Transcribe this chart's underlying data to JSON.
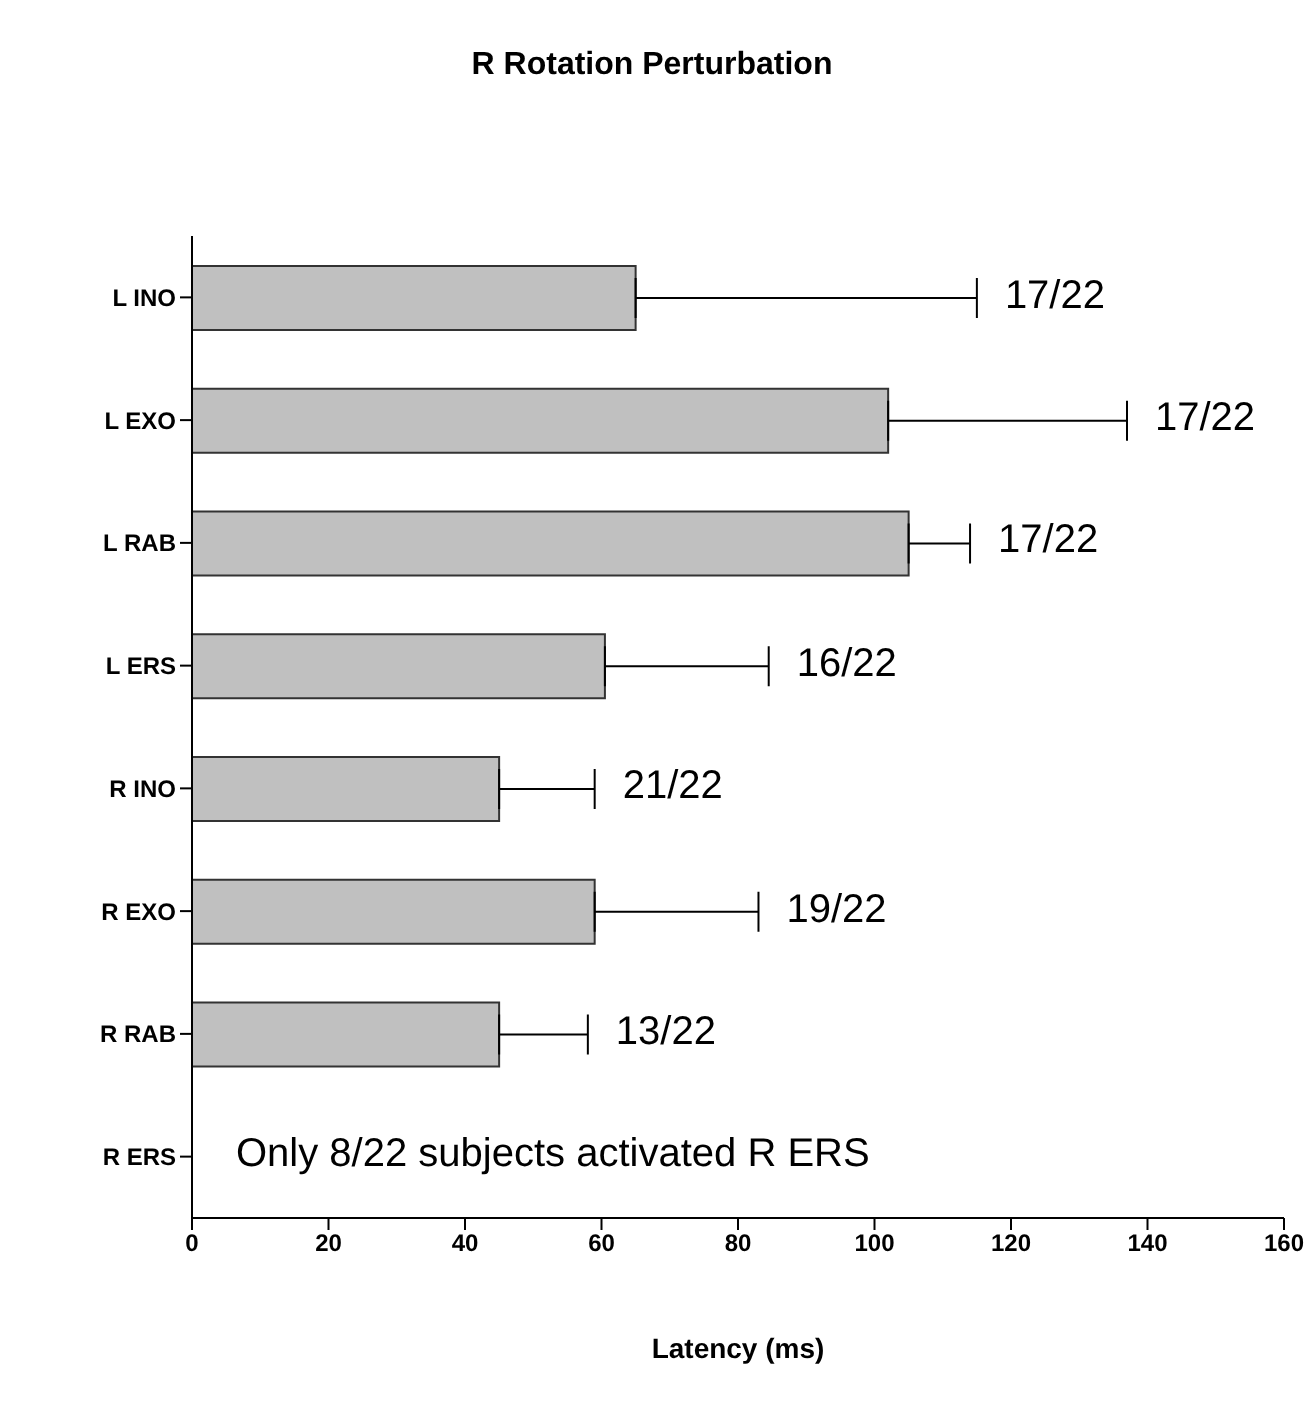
{
  "chart_data": {
    "type": "bar",
    "orientation": "horizontal",
    "title": "R Rotation Perturbation",
    "xlabel": "Latency (ms)",
    "categories": [
      "L INO",
      "L EXO",
      "L RAB",
      "L ERS",
      "R INO",
      "R EXO",
      "R RAB",
      "R ERS"
    ],
    "values": [
      65,
      102,
      105,
      60.5,
      45,
      59,
      45,
      null
    ],
    "errors": [
      [
        65,
        115
      ],
      [
        102,
        137
      ],
      [
        105,
        114
      ],
      [
        60.5,
        84.5
      ],
      [
        45,
        59
      ],
      [
        59,
        83
      ],
      [
        45,
        58
      ],
      null
    ],
    "color": "#c0c0c0",
    "xlim": [
      0,
      160
    ],
    "xticks": [
      0,
      20,
      40,
      60,
      80,
      100,
      120,
      140,
      160
    ],
    "annotations": [
      {
        "text": "17/22",
        "x": 115,
        "y": "L INO"
      },
      {
        "text": "17/22",
        "x": 137,
        "y": "L EXO"
      },
      {
        "text": "17/22",
        "x": 114,
        "y": "L RAB"
      },
      {
        "text": "16/22",
        "x": 84.5,
        "y": "L ERS"
      },
      {
        "text": "21/22",
        "x": 59,
        "y": "R INO"
      },
      {
        "text": "19/22",
        "x": 83,
        "y": "R EXO"
      },
      {
        "text": "13/22",
        "x": 58,
        "y": "R RAB"
      },
      "Only 8/22 subjects activated R ERS"
    ],
    "grid": false,
    "legend": false
  }
}
